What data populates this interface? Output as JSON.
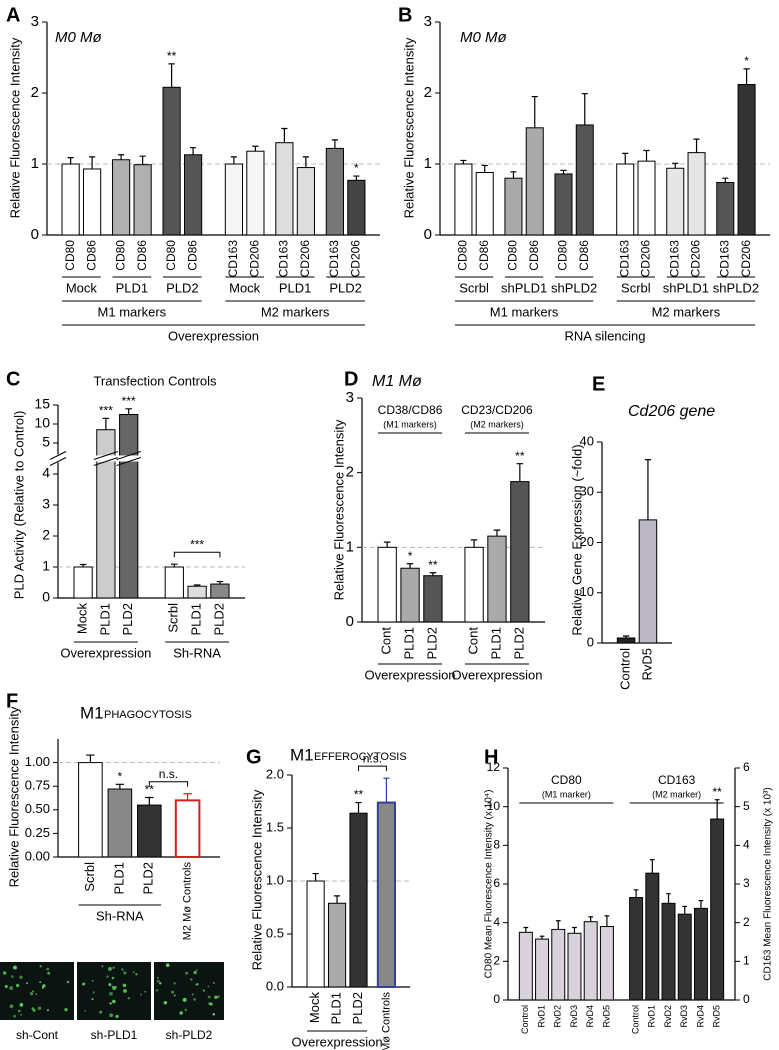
{
  "chart_data": [
    {
      "type": "bar",
      "panel": "A",
      "title": "M0 Mø",
      "title_style": "italic",
      "ylabel": "Relative Fluorescence Intensity",
      "ylim": [
        0,
        3
      ],
      "yticks": [
        0,
        1,
        2,
        3
      ],
      "ref_line": 1,
      "sections": [
        {
          "label": "M1 markers",
          "groups": [
            {
              "label": "Mock",
              "categories": [
                "CD80",
                "CD86"
              ],
              "values": [
                1.0,
                0.93
              ],
              "errors": [
                0.09,
                0.17
              ],
              "colors": [
                "#ffffff",
                "#ffffff"
              ],
              "stars": [
                null,
                null
              ]
            },
            {
              "label": "PLD1",
              "categories": [
                "CD80",
                "CD86"
              ],
              "values": [
                1.06,
                0.99
              ],
              "errors": [
                0.07,
                0.12
              ],
              "colors": [
                "#b0b0b0",
                "#b0b0b0"
              ],
              "stars": [
                null,
                null
              ]
            },
            {
              "label": "PLD2",
              "categories": [
                "CD80",
                "CD86"
              ],
              "values": [
                2.08,
                1.13
              ],
              "errors": [
                0.33,
                0.1
              ],
              "colors": [
                "#555555",
                "#555555"
              ],
              "stars": [
                "**",
                null
              ]
            }
          ]
        },
        {
          "label": "M2 markers",
          "groups": [
            {
              "label": "Mock",
              "categories": [
                "CD163",
                "CD206"
              ],
              "values": [
                1.0,
                1.18
              ],
              "errors": [
                0.1,
                0.07
              ],
              "colors": [
                "#f6f6f6",
                "#f6f6f6"
              ],
              "stars": [
                null,
                null
              ]
            },
            {
              "label": "PLD1",
              "categories": [
                "CD163",
                "CD206"
              ],
              "values": [
                1.3,
                0.95
              ],
              "errors": [
                0.2,
                0.15
              ],
              "colors": [
                "#dddddd",
                "#dddddd"
              ],
              "stars": [
                null,
                null
              ]
            },
            {
              "label": "PLD2",
              "categories": [
                "CD163",
                "CD206"
              ],
              "values": [
                1.22,
                0.77
              ],
              "errors": [
                0.12,
                0.06
              ],
              "colors": [
                "#777777",
                "#444444"
              ],
              "stars": [
                null,
                "*"
              ]
            }
          ]
        }
      ],
      "footer": "Overexpression"
    },
    {
      "type": "bar",
      "panel": "B",
      "title": "M0 Mø",
      "title_style": "italic",
      "ylabel": "Relative Fluorescence Intensity",
      "ylim": [
        0,
        3
      ],
      "yticks": [
        0,
        1,
        2,
        3
      ],
      "ref_line": 1,
      "sections": [
        {
          "label": "M1 markers",
          "groups": [
            {
              "label": "Scrbl",
              "categories": [
                "CD80",
                "CD86"
              ],
              "values": [
                1.0,
                0.88
              ],
              "errors": [
                0.05,
                0.1
              ],
              "colors": [
                "#ffffff",
                "#ffffff"
              ],
              "stars": [
                null,
                null
              ]
            },
            {
              "label": "shPLD1",
              "categories": [
                "CD80",
                "CD86"
              ],
              "values": [
                0.8,
                1.51
              ],
              "errors": [
                0.09,
                0.44
              ],
              "colors": [
                "#aaaaaa",
                "#aaaaaa"
              ],
              "stars": [
                null,
                null
              ]
            },
            {
              "label": "shPLD2",
              "categories": [
                "CD80",
                "CD86"
              ],
              "values": [
                0.86,
                1.55
              ],
              "errors": [
                0.05,
                0.44
              ],
              "colors": [
                "#555555",
                "#555555"
              ],
              "stars": [
                null,
                null
              ]
            }
          ]
        },
        {
          "label": "M2 markers",
          "groups": [
            {
              "label": "Scrbl",
              "categories": [
                "CD163",
                "CD206"
              ],
              "values": [
                1.0,
                1.04
              ],
              "errors": [
                0.15,
                0.15
              ],
              "colors": [
                "#ffffff",
                "#ffffff"
              ],
              "stars": [
                null,
                null
              ]
            },
            {
              "label": "shPLD1",
              "categories": [
                "CD163",
                "CD206"
              ],
              "values": [
                0.94,
                1.16
              ],
              "errors": [
                0.07,
                0.19
              ],
              "colors": [
                "#e6e6e6",
                "#e6e6e6"
              ],
              "stars": [
                null,
                null
              ]
            },
            {
              "label": "shPLD2",
              "categories": [
                "CD163",
                "CD206"
              ],
              "values": [
                0.74,
                2.12
              ],
              "errors": [
                0.06,
                0.22
              ],
              "colors": [
                "#555555",
                "#333333"
              ],
              "stars": [
                null,
                "*"
              ]
            }
          ]
        }
      ],
      "footer": "RNA silencing"
    },
    {
      "type": "bar",
      "panel": "C",
      "title": "Transfection Controls",
      "ylabel": "PLD Activity (Relative to Control)",
      "ylim": [
        0,
        15
      ],
      "y_break": [
        4,
        5
      ],
      "yticks": [
        0,
        1,
        2,
        3,
        4,
        5,
        10,
        15
      ],
      "ref_line": 1,
      "sections": [
        {
          "label": "Overexpression",
          "groups": [
            {
              "categories": [
                "Mock",
                "PLD1",
                "PLD2"
              ],
              "values": [
                1.0,
                8.5,
                12.5
              ],
              "errors": [
                0.08,
                3.0,
                1.5
              ],
              "colors": [
                "#ffffff",
                "#cccccc",
                "#666666"
              ],
              "stars": [
                null,
                "***",
                "***"
              ]
            }
          ]
        },
        {
          "label": "Sh-RNA",
          "groups": [
            {
              "categories": [
                "Scrbl",
                "PLD1",
                "PLD2"
              ],
              "values": [
                1.0,
                0.38,
                0.45
              ],
              "errors": [
                0.09,
                0.04,
                0.08
              ],
              "colors": [
                "#ffffff",
                "#dddddd",
                "#888888"
              ],
              "stars": [
                null,
                null,
                null
              ]
            }
          ]
        }
      ],
      "brackets": [
        {
          "from": 3,
          "to": 5,
          "label": "***"
        }
      ]
    },
    {
      "type": "bar",
      "panel": "D",
      "title": "M1 Mø",
      "title_style": "italic",
      "ylabel": "Relative Fluorescence Intensity",
      "ylim": [
        0,
        3
      ],
      "yticks": [
        0,
        1,
        2,
        3
      ],
      "ref_line": 1,
      "sections": [
        {
          "header": "CD38/CD86",
          "header_note": "(M1 markers)",
          "label": "Overexpression",
          "groups": [
            {
              "categories": [
                "Cont",
                "PLD1",
                "PLD2"
              ],
              "values": [
                1.0,
                0.72,
                0.62
              ],
              "errors": [
                0.07,
                0.06,
                0.04
              ],
              "colors": [
                "#ffffff",
                "#aaaaaa",
                "#555555"
              ],
              "stars": [
                null,
                "*",
                "**"
              ]
            }
          ]
        },
        {
          "header": "CD23/CD206",
          "header_note": "(M2 markers)",
          "label": "Overexpression",
          "groups": [
            {
              "categories": [
                "Cont",
                "PLD1",
                "PLD2"
              ],
              "values": [
                1.0,
                1.15,
                1.88
              ],
              "errors": [
                0.1,
                0.08,
                0.24
              ],
              "colors": [
                "#ffffff",
                "#aaaaaa",
                "#555555"
              ],
              "stars": [
                null,
                null,
                "**"
              ]
            }
          ]
        }
      ]
    },
    {
      "type": "bar",
      "panel": "E",
      "title": "Cd206 gene",
      "title_style": "italic",
      "ylabel": "Relative Gene Expression (~fold)",
      "ylim": [
        0,
        40
      ],
      "yticks": [
        0,
        10,
        20,
        30,
        40
      ],
      "sections": [
        {
          "groups": [
            {
              "categories": [
                "Control",
                "RvD5"
              ],
              "values": [
                1.0,
                24.5
              ],
              "errors": [
                0.4,
                12
              ],
              "colors": [
                "#222222",
                "#bbb7c4"
              ],
              "stars": [
                null,
                null
              ]
            }
          ]
        }
      ]
    },
    {
      "type": "bar",
      "panel": "F",
      "title": "M1",
      "title_suffix": "PHAGOCYTOSIS",
      "ylabel": "Relative Fluorescence Intensity",
      "ylim": [
        0,
        1.25
      ],
      "yticks": [
        {
          "value": 0,
          "label": "0.00"
        },
        {
          "value": 0.25,
          "label": "0.25"
        },
        {
          "value": 0.5,
          "label": "0.50"
        },
        {
          "value": 0.75,
          "label": "0.75"
        },
        {
          "value": 1,
          "label": "1.00"
        }
      ],
      "ref_line": 1,
      "sections": [
        {
          "label": "Sh-RNA",
          "groups": [
            {
              "categories": [
                "Scrbl",
                "PLD1",
                "PLD2"
              ],
              "values": [
                1.0,
                0.72,
                0.55
              ],
              "errors": [
                0.08,
                0.05,
                0.08
              ],
              "colors": [
                "#ffffff",
                "#888888",
                "#333333"
              ],
              "stars": [
                null,
                "*",
                "**"
              ]
            }
          ]
        },
        {
          "groups": [
            {
              "categories": [
                "M2 Mø Controls"
              ],
              "values": [
                0.6
              ],
              "errors": [
                0.07
              ],
              "colors": [
                "#ffffff"
              ],
              "edge": "#d42020",
              "label_color": "#d42020",
              "stars": [
                null
              ]
            }
          ]
        }
      ],
      "brackets": [
        {
          "from": 2,
          "to": 3,
          "label": "n.s."
        }
      ],
      "image_captions": [
        "sh-Cont",
        "sh-PLD1",
        "sh-PLD2"
      ]
    },
    {
      "type": "bar",
      "panel": "G",
      "title": "M1",
      "title_suffix": "EFFEROCYTOSIS",
      "ylabel": "Relative Fluorescence Intensity",
      "ylim": [
        0,
        2
      ],
      "yticks": [
        {
          "value": 0,
          "label": "0.0"
        },
        {
          "value": 0.5,
          "label": "0.5"
        },
        {
          "value": 1,
          "label": "1.0"
        },
        {
          "value": 1.5,
          "label": "1.5"
        },
        {
          "value": 2,
          "label": "2.0"
        }
      ],
      "ref_line": 1,
      "sections": [
        {
          "label": "Overexpression",
          "groups": [
            {
              "categories": [
                "Mock",
                "PLD1",
                "PLD2"
              ],
              "values": [
                1.0,
                0.79,
                1.64
              ],
              "errors": [
                0.07,
                0.07,
                0.1
              ],
              "colors": [
                "#ffffff",
                "#aaaaaa",
                "#333333"
              ],
              "stars": [
                null,
                null,
                "**"
              ]
            }
          ]
        },
        {
          "groups": [
            {
              "categories": [
                "M2 Mø Controls"
              ],
              "values": [
                1.74
              ],
              "errors": [
                0.23
              ],
              "colors": [
                "#888888"
              ],
              "edge": "#3040a0",
              "label_color": "#3040a0",
              "stars": [
                null
              ]
            }
          ]
        }
      ],
      "brackets": [
        {
          "from": 2,
          "to": 3,
          "label": "n.s."
        }
      ]
    },
    {
      "type": "bar",
      "panel": "H",
      "ylabel": "CD80 Mean Fluorescence Intensity (x 10⁴)",
      "ylim": [
        0,
        12
      ],
      "yticks": [
        0,
        2,
        4,
        6,
        8,
        10,
        12
      ],
      "y2label": "CD163 Mean Fluorescence Intensity (x 10³)",
      "y2lim": [
        0,
        6
      ],
      "y2ticks": [
        0,
        1,
        2,
        3,
        4,
        5,
        6
      ],
      "sections": [
        {
          "header": "CD80",
          "header_note": "(M1 marker)",
          "groups": [
            {
              "categories": [
                "Control",
                "RvD1",
                "RvD2",
                "RvD3",
                "RvD4",
                "RvD5"
              ],
              "values": [
                3.5,
                3.15,
                3.65,
                3.45,
                4.05,
                3.8
              ],
              "errors": [
                0.25,
                0.15,
                0.45,
                0.3,
                0.25,
                0.55
              ],
              "colors": [
                "#d9d2dc",
                "#d9d2dc",
                "#d9d2dc",
                "#d9d2dc",
                "#d9d2dc",
                "#d9d2dc"
              ],
              "stars": [
                null,
                null,
                null,
                null,
                null,
                null
              ]
            }
          ]
        },
        {
          "header": "CD163",
          "header_note": "(M2 marker)",
          "groups": [
            {
              "axis": "y2",
              "categories": [
                "Control",
                "RvD1",
                "RvD2",
                "RvD3",
                "RvD4",
                "RvD5"
              ],
              "values": [
                2.65,
                3.28,
                2.5,
                2.22,
                2.37,
                4.68
              ],
              "errors": [
                0.2,
                0.35,
                0.25,
                0.2,
                0.2,
                0.5
              ],
              "colors": [
                "#333333",
                "#333333",
                "#333333",
                "#333333",
                "#333333",
                "#333333"
              ],
              "stars": [
                null,
                null,
                null,
                null,
                null,
                "**"
              ]
            }
          ]
        }
      ]
    }
  ]
}
